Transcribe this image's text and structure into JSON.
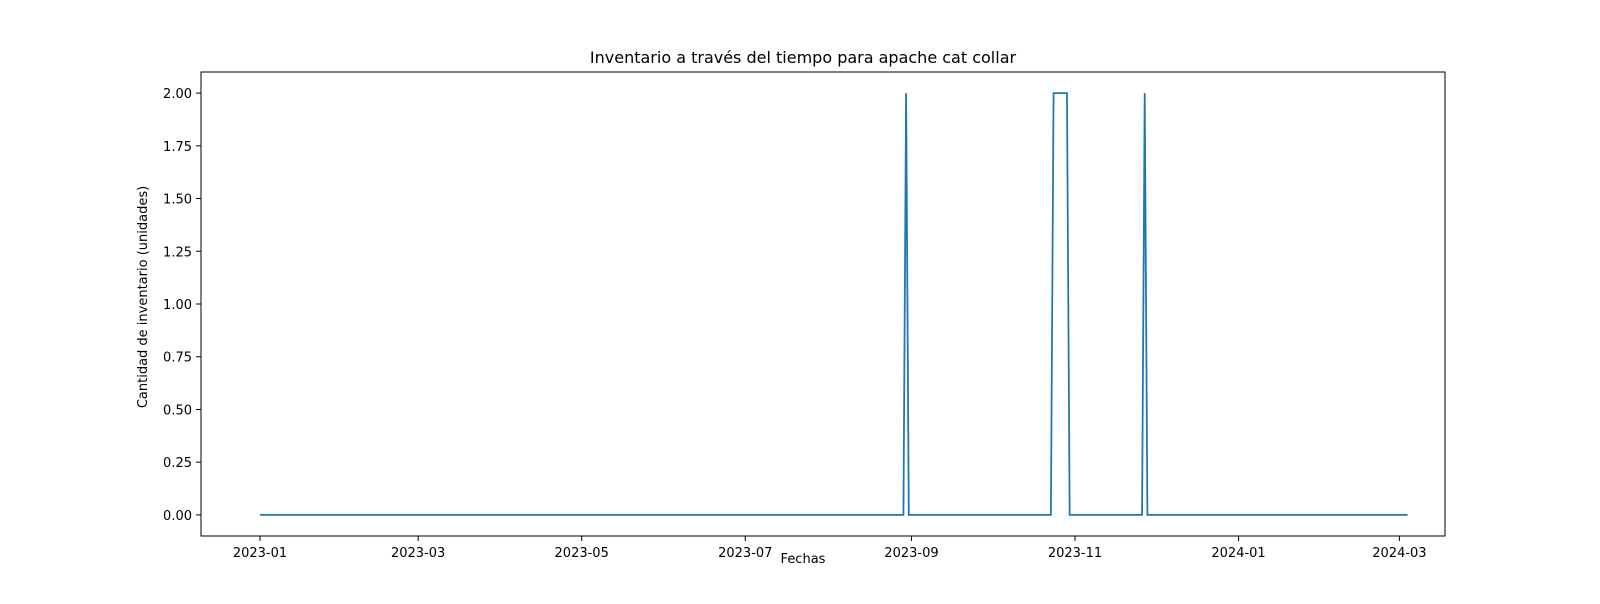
{
  "chart_data": {
    "type": "line",
    "title": "Inventario a través del tiempo para apache cat collar",
    "xlabel": "Fechas",
    "ylabel": "Cantidad de inventario (unidades)",
    "xlim": [
      "2022-12-10",
      "2024-03-18"
    ],
    "ylim": [
      -0.1,
      2.1
    ],
    "x_ticks": [
      "2023-01",
      "2023-03",
      "2023-05",
      "2023-07",
      "2023-09",
      "2023-11",
      "2024-01",
      "2024-03"
    ],
    "y_ticks": [
      "0.00",
      "0.25",
      "0.50",
      "0.75",
      "1.00",
      "1.25",
      "1.50",
      "1.75",
      "2.00"
    ],
    "grid": false,
    "series": [
      {
        "color": "#1f77b4",
        "points": [
          [
            "2023-01-01",
            0
          ],
          [
            "2023-08-29",
            0
          ],
          [
            "2023-08-30",
            2
          ],
          [
            "2023-08-31",
            0
          ],
          [
            "2023-10-23",
            0
          ],
          [
            "2023-10-24",
            2
          ],
          [
            "2023-10-29",
            2
          ],
          [
            "2023-10-30",
            0
          ],
          [
            "2023-11-26",
            0
          ],
          [
            "2023-11-27",
            2
          ],
          [
            "2023-11-28",
            0
          ],
          [
            "2024-03-04",
            0
          ]
        ]
      }
    ]
  }
}
